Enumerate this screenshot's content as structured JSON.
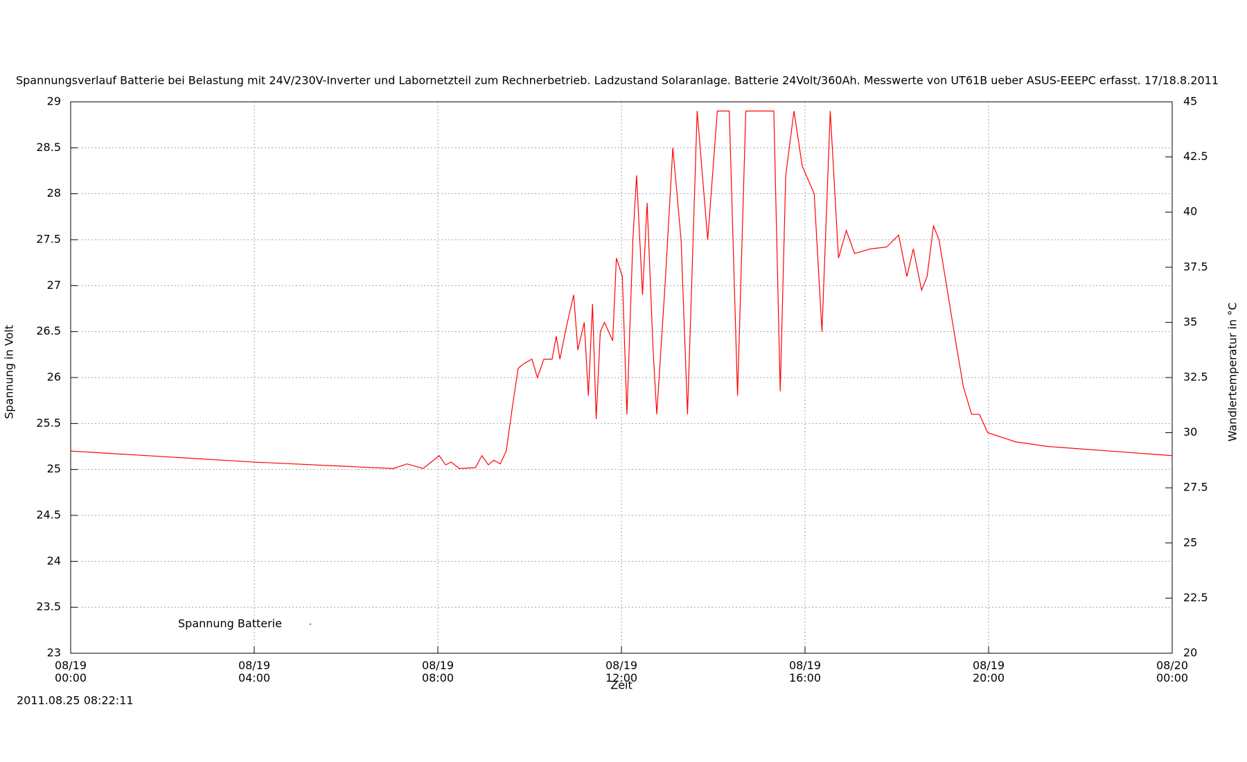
{
  "chart_data": {
    "type": "line",
    "title": "Spannungsverlauf Batterie bei Belastung mit 24V/230V-Inverter und Labornetzteil zum Rechnerbetrieb. Ladzustand Solaranlage. Batterie 24Volt/360Ah. Messwerte von UT61B ueber ASUS-EEEPC erfasst. 17/18.8.2011",
    "xlabel": "Zeit",
    "ylabel": "Spannung in Volt",
    "y2label": "Wandlertemperatur in °C",
    "timestamp": "2011.08.25 08:22:11",
    "x": [
      0,
      4.0,
      7.03,
      7.33,
      7.68,
      8.03,
      8.17,
      8.29,
      8.47,
      8.82,
      8.96,
      9.1,
      9.22,
      9.36,
      9.49,
      9.63,
      9.75,
      9.87,
      10.05,
      10.17,
      10.31,
      10.49,
      10.58,
      10.66,
      10.8,
      10.96,
      11.05,
      11.19,
      11.28,
      11.37,
      11.45,
      11.54,
      11.63,
      11.81,
      11.89,
      12.02,
      12.12,
      12.25,
      12.33,
      12.46,
      12.56,
      12.69,
      12.77,
      12.95,
      13.12,
      13.3,
      13.44,
      13.53,
      13.65,
      13.88,
      14.09,
      14.35,
      14.53,
      14.71,
      15.06,
      15.32,
      15.46,
      15.58,
      15.76,
      15.94,
      16.2,
      16.37,
      16.55,
      16.73,
      16.9,
      17.08,
      17.43,
      17.78,
      18.04,
      18.22,
      18.36,
      18.54,
      18.66,
      18.8,
      18.92,
      19.1,
      19.28,
      19.45,
      19.63,
      19.8,
      19.98,
      20.59,
      21.29,
      24.0
    ],
    "series": [
      {
        "name": "Spannung Batterie",
        "color": "#ff0000",
        "values": [
          25.2,
          25.08,
          25.01,
          25.06,
          25.01,
          25.15,
          25.05,
          25.08,
          25.01,
          25.02,
          25.15,
          25.05,
          25.1,
          25.06,
          25.2,
          25.7,
          26.1,
          26.15,
          26.2,
          26.0,
          26.2,
          26.2,
          26.45,
          26.2,
          26.55,
          26.9,
          26.3,
          26.6,
          25.8,
          26.8,
          25.55,
          26.5,
          26.6,
          26.4,
          27.3,
          27.1,
          25.6,
          27.5,
          28.2,
          26.9,
          27.9,
          26.3,
          25.6,
          27.0,
          28.5,
          27.5,
          25.6,
          27.0,
          28.9,
          27.5,
          28.9,
          28.9,
          25.8,
          28.9,
          28.9,
          28.9,
          25.85,
          28.2,
          28.9,
          28.3,
          28.0,
          26.5,
          28.9,
          27.3,
          27.6,
          27.35,
          27.4,
          27.42,
          27.55,
          27.1,
          27.4,
          26.95,
          27.1,
          27.65,
          27.5,
          26.95,
          26.4,
          25.9,
          25.6,
          25.6,
          25.4,
          25.3,
          25.25,
          25.15
        ]
      }
    ],
    "xlim": [
      0,
      24
    ],
    "xticks": [
      {
        "value": 0,
        "label": "08/19\n00:00"
      },
      {
        "value": 4,
        "label": "08/19\n04:00"
      },
      {
        "value": 8,
        "label": "08/19\n08:00"
      },
      {
        "value": 12,
        "label": "08/19\n12:00"
      },
      {
        "value": 16,
        "label": "08/19\n16:00"
      },
      {
        "value": 20,
        "label": "08/19\n20:00"
      },
      {
        "value": 24,
        "label": "08/20\n00:00"
      }
    ],
    "ylim": [
      23,
      29
    ],
    "yticks": [
      23,
      23.5,
      24,
      24.5,
      25,
      25.5,
      26,
      26.5,
      27,
      27.5,
      28,
      28.5,
      29
    ],
    "y2lim": [
      20,
      45
    ],
    "y2ticks": [
      20,
      22.5,
      25,
      27.5,
      30,
      32.5,
      35,
      37.5,
      40,
      42.5,
      45
    ],
    "grid": true,
    "legend": "lower left"
  }
}
